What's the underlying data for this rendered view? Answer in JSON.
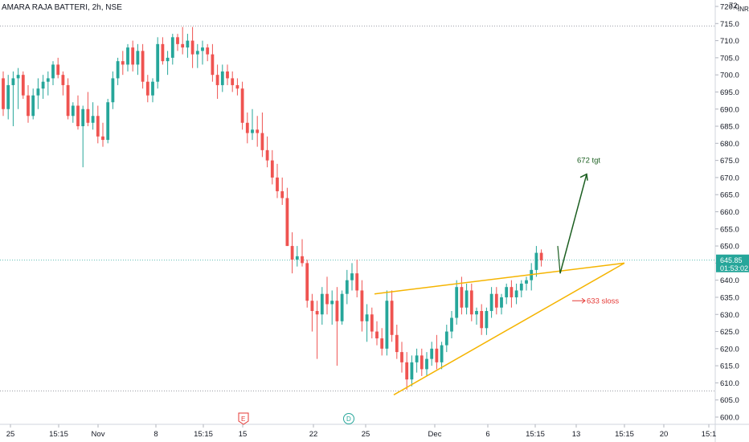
{
  "chart_data": {
    "type": "candlestick",
    "title": "AMARA RAJA BATTERI, 2h, NSE",
    "currency_label": "INR",
    "y_top_partial": "72",
    "ylim": [
      599,
      723
    ],
    "y_ticks": [
      600,
      605,
      610,
      615,
      620,
      625,
      630,
      635,
      640,
      645,
      650,
      655,
      660,
      665,
      670,
      675,
      680,
      685,
      690,
      695,
      700,
      705,
      710,
      715,
      720
    ],
    "x_ticks": [
      "25",
      "15:15",
      "Nov",
      "8",
      "15:15",
      "15",
      "22",
      "25",
      "Dec",
      "6",
      "15:15",
      "13",
      "15:15",
      "20",
      "15:1"
    ],
    "last_price": "645.85",
    "countdown": "01:53:02",
    "colors": {
      "up": "#26a69a",
      "down": "#ef5350",
      "trend": "#f5b400",
      "target": "#1b5e20",
      "sloss": "#e53935"
    },
    "candles": [
      [
        699,
        701,
        688,
        690
      ],
      [
        690,
        700,
        687,
        697
      ],
      [
        697,
        701,
        685,
        699
      ],
      [
        699,
        702,
        690,
        700
      ],
      [
        700,
        701,
        693,
        694
      ],
      [
        694,
        697,
        686,
        688
      ],
      [
        688,
        696,
        687,
        694
      ],
      [
        694,
        699,
        690,
        696
      ],
      [
        696,
        700,
        693,
        698
      ],
      [
        698,
        701,
        694,
        699
      ],
      [
        699,
        704,
        697,
        703
      ],
      [
        703,
        705,
        699,
        700
      ],
      [
        700,
        701,
        694,
        697
      ],
      [
        697,
        699,
        687,
        688
      ],
      [
        688,
        692,
        686,
        691
      ],
      [
        691,
        694,
        684,
        685
      ],
      [
        685,
        691,
        673,
        690
      ],
      [
        690,
        695,
        685,
        686
      ],
      [
        686,
        692,
        684,
        688
      ],
      [
        688,
        691,
        680,
        682
      ],
      [
        682,
        686,
        679,
        681
      ],
      [
        681,
        693,
        680,
        692
      ],
      [
        692,
        701,
        690,
        699
      ],
      [
        699,
        705,
        697,
        704
      ],
      [
        704,
        707,
        700,
        703
      ],
      [
        703,
        709,
        701,
        708
      ],
      [
        708,
        710,
        701,
        703
      ],
      [
        703,
        709,
        700,
        707
      ],
      [
        707,
        709,
        696,
        698
      ],
      [
        698,
        700,
        692,
        694
      ],
      [
        694,
        699,
        692,
        698
      ],
      [
        698,
        711,
        696,
        709
      ],
      [
        709,
        711,
        703,
        704
      ],
      [
        704,
        707,
        700,
        705
      ],
      [
        705,
        712,
        703,
        711
      ],
      [
        711,
        712,
        707,
        709
      ],
      [
        709,
        714,
        706,
        708
      ],
      [
        708,
        712,
        705,
        710
      ],
      [
        710,
        714,
        702,
        706
      ],
      [
        706,
        709,
        702,
        707
      ],
      [
        707,
        710,
        703,
        708
      ],
      [
        708,
        709,
        704,
        706
      ],
      [
        706,
        709,
        698,
        700
      ],
      [
        700,
        703,
        693,
        697
      ],
      [
        697,
        703,
        695,
        701
      ],
      [
        701,
        703,
        697,
        699
      ],
      [
        699,
        701,
        695,
        697
      ],
      [
        697,
        699,
        694,
        696
      ],
      [
        696,
        698,
        684,
        686
      ],
      [
        686,
        689,
        680,
        683
      ],
      [
        683,
        690,
        681,
        684
      ],
      [
        684,
        688,
        679,
        683
      ],
      [
        683,
        689,
        676,
        678
      ],
      [
        678,
        682,
        673,
        675
      ],
      [
        675,
        678,
        668,
        670
      ],
      [
        670,
        674,
        664,
        666
      ],
      [
        666,
        670,
        662,
        664
      ],
      [
        664,
        667,
        650,
        650
      ],
      [
        650,
        654,
        642,
        646
      ],
      [
        646,
        650,
        644,
        647
      ],
      [
        647,
        652,
        644,
        645
      ],
      [
        645,
        646,
        632,
        634
      ],
      [
        634,
        636,
        625,
        631
      ],
      [
        631,
        634,
        617,
        630
      ],
      [
        630,
        638,
        627,
        636
      ],
      [
        636,
        641,
        630,
        633
      ],
      [
        633,
        637,
        627,
        634
      ],
      [
        634,
        638,
        615,
        628
      ],
      [
        628,
        637,
        627,
        636
      ],
      [
        636,
        643,
        633,
        640
      ],
      [
        640,
        645,
        637,
        642
      ],
      [
        642,
        646,
        635,
        637
      ],
      [
        637,
        640,
        625,
        628
      ],
      [
        628,
        633,
        622,
        630
      ],
      [
        630,
        632,
        623,
        625
      ],
      [
        625,
        628,
        621,
        623
      ],
      [
        623,
        626,
        618,
        620
      ],
      [
        620,
        637,
        618,
        634
      ],
      [
        634,
        637,
        622,
        624
      ],
      [
        624,
        627,
        617,
        619
      ],
      [
        619,
        622,
        613,
        616
      ],
      [
        616,
        619,
        608,
        611
      ],
      [
        611,
        618,
        609,
        616
      ],
      [
        616,
        620,
        613,
        618
      ],
      [
        618,
        620,
        612,
        614
      ],
      [
        614,
        619,
        612,
        617
      ],
      [
        617,
        622,
        615,
        620
      ],
      [
        620,
        624,
        614,
        616
      ],
      [
        616,
        622,
        614,
        621
      ],
      [
        621,
        627,
        619,
        625
      ],
      [
        625,
        631,
        623,
        629
      ],
      [
        629,
        640,
        627,
        638
      ],
      [
        638,
        641,
        630,
        632
      ],
      [
        632,
        639,
        630,
        637
      ],
      [
        637,
        639,
        628,
        630
      ],
      [
        630,
        632,
        627,
        631
      ],
      [
        631,
        633,
        624,
        626
      ],
      [
        626,
        632,
        624,
        631
      ],
      [
        631,
        638,
        629,
        636
      ],
      [
        636,
        638,
        630,
        632
      ],
      [
        632,
        636,
        630,
        635
      ],
      [
        635,
        639,
        633,
        638
      ],
      [
        638,
        640,
        632,
        635
      ],
      [
        635,
        639,
        633,
        637
      ],
      [
        637,
        640,
        635,
        639
      ],
      [
        639,
        641,
        637,
        640
      ],
      [
        640,
        645,
        637,
        643
      ],
      [
        643,
        650,
        641,
        648
      ],
      [
        648,
        649,
        644,
        645.85
      ]
    ],
    "annotations": [
      {
        "text": "672 tgt",
        "value": 672
      },
      {
        "text": "633 sloss",
        "value": 633
      }
    ],
    "event_markers": [
      "E",
      "D"
    ]
  }
}
